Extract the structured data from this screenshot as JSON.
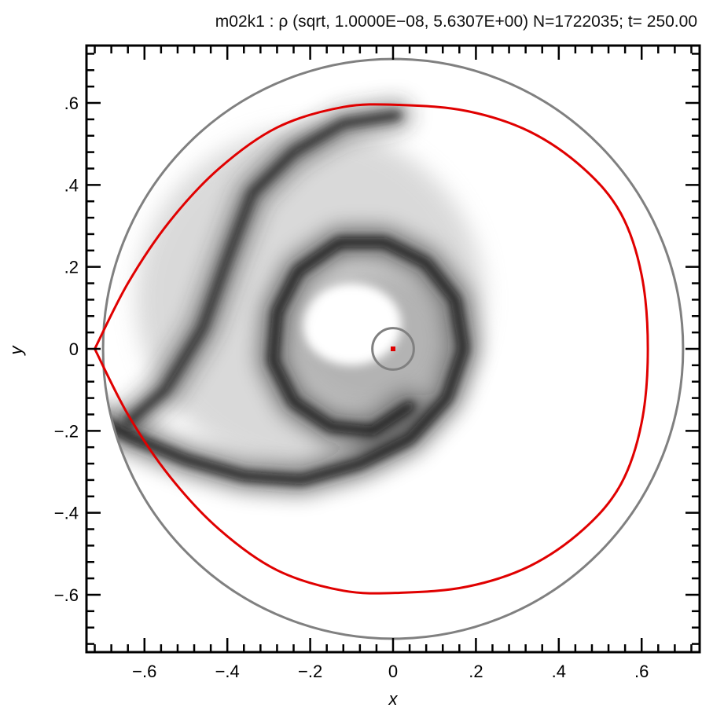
{
  "title": "m02k1 : ρ (sqrt, 1.0000E−08, 5.6307E+00) N=1722035; t=  250.00",
  "chart_data": {
    "type": "heatmap",
    "title": "m02k1 : ρ (sqrt, 1.0000E−08, 5.6307E+00) N=1722035; t=  250.00",
    "xlabel": "x",
    "ylabel": "y",
    "xlim": [
      -0.74,
      0.74
    ],
    "ylim": [
      -0.74,
      0.74
    ],
    "x_ticks": [
      -0.6,
      -0.4,
      -0.2,
      0,
      0.2,
      0.4,
      0.6
    ],
    "y_ticks": [
      -0.6,
      -0.4,
      -0.2,
      0,
      0.2,
      0.4,
      0.6
    ],
    "x_tick_labels": [
      "−.6",
      "−.4",
      "−.2",
      "0",
      ".2",
      ".4",
      ".6"
    ],
    "y_tick_labels": [
      "−.6",
      "−.4",
      "−.2",
      "0",
      ".2",
      ".4",
      ".6"
    ],
    "colormap": "grayscale, sqrt scale, white = low density, black = high density",
    "density_range": [
      1e-08,
      5.6307
    ],
    "outer_circle": {
      "center": [
        0,
        0
      ],
      "radius": 0.7,
      "color": "#808080"
    },
    "inner_circle": {
      "center": [
        0,
        0
      ],
      "radius": 0.05,
      "color": "#808080"
    },
    "central_point": {
      "x": 0,
      "y": 0,
      "color": "#e00000"
    },
    "roche_lobe": {
      "color": "#e00000",
      "points": [
        [
          -0.72,
          0.0
        ],
        [
          -0.64,
          0.16
        ],
        [
          -0.54,
          0.31
        ],
        [
          -0.42,
          0.44
        ],
        [
          -0.28,
          0.54
        ],
        [
          -0.12,
          0.59
        ],
        [
          0.02,
          0.595
        ],
        [
          0.18,
          0.58
        ],
        [
          0.33,
          0.53
        ],
        [
          0.46,
          0.44
        ],
        [
          0.55,
          0.33
        ],
        [
          0.6,
          0.18
        ],
        [
          0.615,
          0.0
        ],
        [
          0.6,
          -0.18
        ],
        [
          0.55,
          -0.33
        ],
        [
          0.46,
          -0.44
        ],
        [
          0.33,
          -0.53
        ],
        [
          0.18,
          -0.58
        ],
        [
          0.02,
          -0.595
        ],
        [
          -0.12,
          -0.59
        ],
        [
          -0.28,
          -0.54
        ],
        [
          -0.42,
          -0.44
        ],
        [
          -0.54,
          -0.31
        ],
        [
          -0.64,
          -0.16
        ],
        [
          -0.72,
          0.0
        ]
      ]
    },
    "spiral_arms": [
      {
        "intensity": 0.95,
        "points": [
          [
            -0.72,
            -0.17
          ],
          [
            -0.62,
            -0.22
          ],
          [
            -0.5,
            -0.27
          ],
          [
            -0.36,
            -0.31
          ],
          [
            -0.22,
            -0.32
          ],
          [
            -0.08,
            -0.28
          ],
          [
            0.04,
            -0.22
          ],
          [
            0.13,
            -0.12
          ],
          [
            0.17,
            0.0
          ],
          [
            0.15,
            0.12
          ],
          [
            0.08,
            0.21
          ],
          [
            -0.02,
            0.26
          ],
          [
            -0.13,
            0.26
          ],
          [
            -0.23,
            0.19
          ],
          [
            -0.28,
            0.09
          ],
          [
            -0.29,
            -0.03
          ],
          [
            -0.24,
            -0.13
          ],
          [
            -0.15,
            -0.19
          ],
          [
            -0.05,
            -0.2
          ],
          [
            0.04,
            -0.14
          ]
        ]
      },
      {
        "intensity": 0.85,
        "points": [
          [
            -0.64,
            -0.18
          ],
          [
            -0.55,
            -0.1
          ],
          [
            -0.46,
            0.05
          ],
          [
            -0.4,
            0.22
          ],
          [
            -0.34,
            0.38
          ],
          [
            -0.24,
            0.48
          ],
          [
            -0.12,
            0.55
          ],
          [
            0.01,
            0.57
          ]
        ]
      }
    ]
  }
}
